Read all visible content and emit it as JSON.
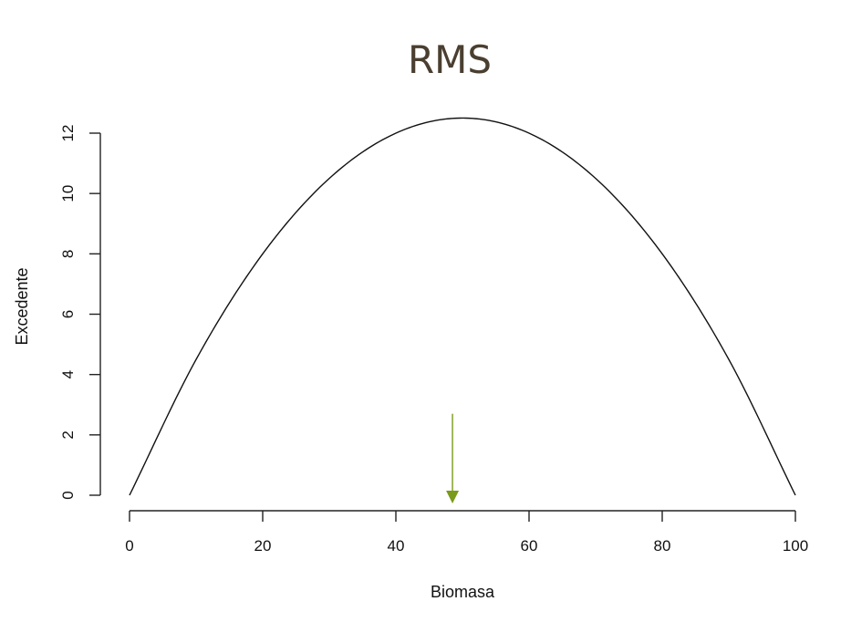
{
  "chart_data": {
    "type": "line",
    "title": "RMS",
    "xlabel": "Biomasa",
    "ylabel": "Excedente",
    "xlim": [
      0,
      100
    ],
    "ylim": [
      0,
      12.5
    ],
    "x_ticks": [
      0,
      20,
      40,
      60,
      80,
      100
    ],
    "y_ticks": [
      0,
      2,
      4,
      6,
      8,
      10,
      12
    ],
    "grid": false,
    "legend": "none",
    "series": [
      {
        "x": [
          0,
          10,
          20,
          30,
          40,
          50,
          60,
          70,
          80,
          90,
          100
        ],
        "values": [
          0,
          4.5,
          8,
          10.5,
          12,
          12.5,
          12,
          10.5,
          8,
          4.5,
          0
        ],
        "color": "#111111"
      }
    ],
    "annotations": [
      {
        "type": "arrow",
        "x": 48.5,
        "y_from": 2.7,
        "y_to": 0,
        "color": "#7a9a1a"
      }
    ]
  }
}
